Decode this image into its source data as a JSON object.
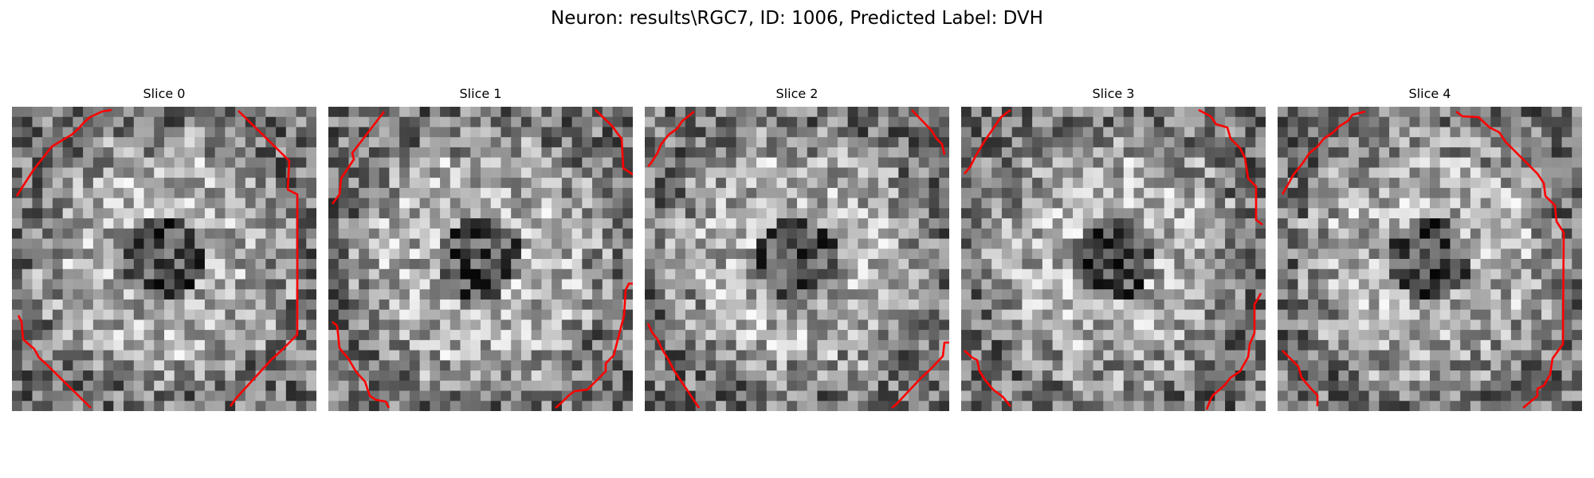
{
  "figure": {
    "title": "Neuron: results\\RGC7, ID: 1006, Predicted Label: DVH",
    "contour_color": "#ff0000",
    "colormap": "grayscale"
  },
  "slices": [
    {
      "title": "Slice 0"
    },
    {
      "title": "Slice 1"
    },
    {
      "title": "Slice 2"
    },
    {
      "title": "Slice 3"
    },
    {
      "title": "Slice 4"
    }
  ]
}
